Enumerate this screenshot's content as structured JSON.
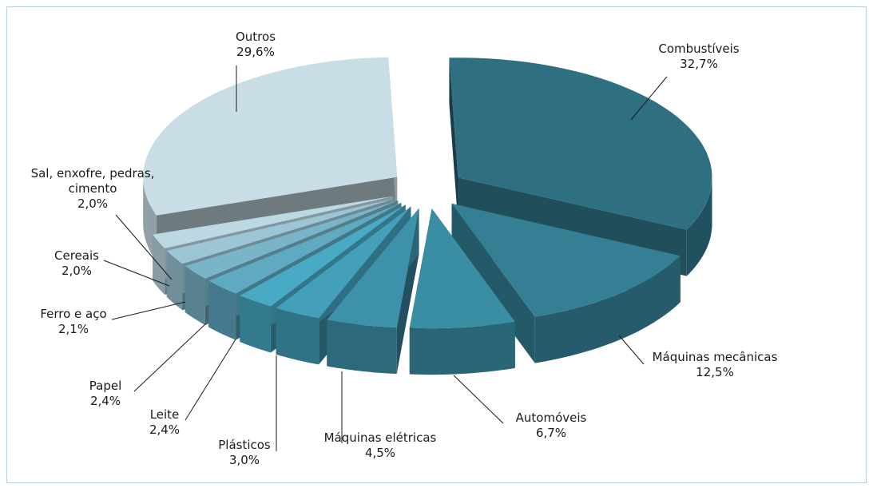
{
  "chart_data": {
    "type": "pie",
    "title": "",
    "slices": [
      {
        "label": "Combustíveis",
        "value": 32.7,
        "value_text": "32,7%",
        "color": "#2e6f82"
      },
      {
        "label": "Máquinas mecânicas",
        "value": 12.5,
        "value_text": "12,5%",
        "color": "#347f93"
      },
      {
        "label": "Automóveis",
        "value": 6.7,
        "value_text": "6,7%",
        "color": "#3a8ea3"
      },
      {
        "label": "Máquinas elétricas",
        "value": 4.5,
        "value_text": "4,5%",
        "color": "#3e91ab"
      },
      {
        "label": "Plásticos",
        "value": 3.0,
        "value_text": "3,0%",
        "color": "#439fba"
      },
      {
        "label": "Leite",
        "value": 2.4,
        "value_text": "2,4%",
        "color": "#48aac4"
      },
      {
        "label": "Papel",
        "value": 2.4,
        "value_text": "2,4%",
        "color": "#5fa9c1"
      },
      {
        "label": "Ferro e aço",
        "value": 2.1,
        "value_text": "2,1%",
        "color": "#7ab4c8"
      },
      {
        "label": "Cereais",
        "value": 2.0,
        "value_text": "2,0%",
        "color": "#9cc6d6"
      },
      {
        "label": "Sal, enxofre, pedras, cimento",
        "value": 2.0,
        "value_text": "2,0%",
        "color": "#bcd8e3"
      },
      {
        "label": "Outros",
        "value": 29.6,
        "value_text": "29,6%",
        "color": "#c9dde6"
      }
    ],
    "legend": "none",
    "style": "3d-exploded-pie"
  }
}
